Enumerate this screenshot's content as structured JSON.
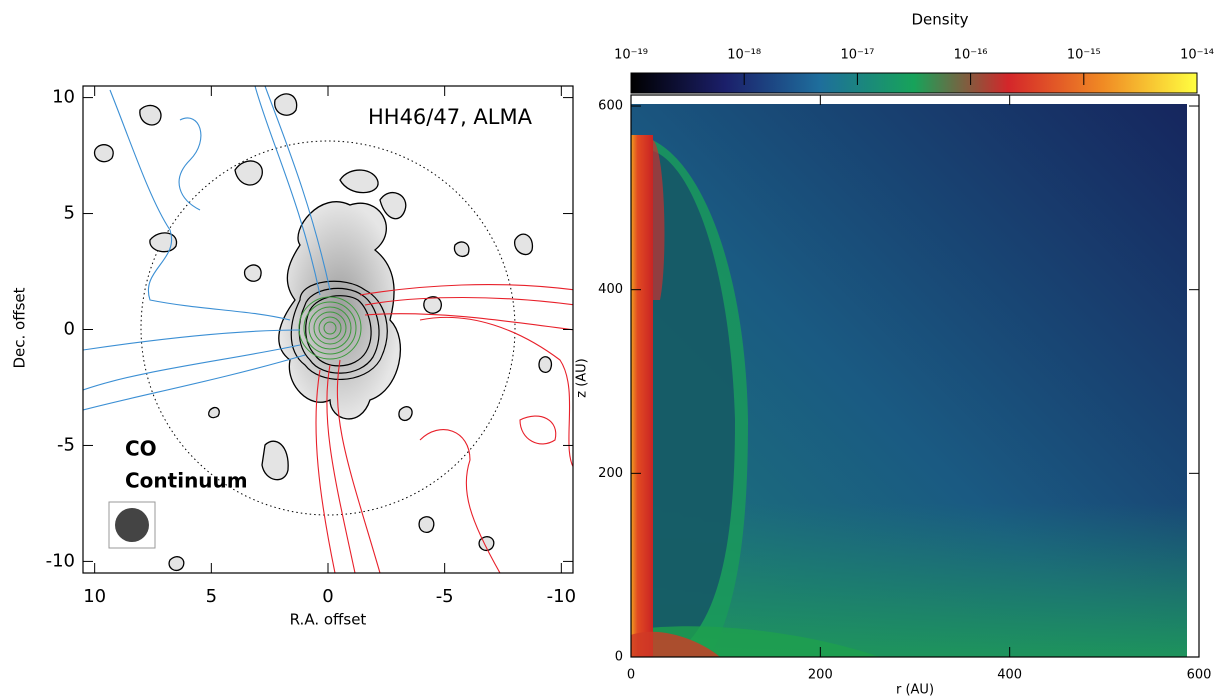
{
  "chart_data": [
    {
      "type": "contour",
      "title": "HH46/47, ALMA",
      "xlabel": "R.A. offset",
      "ylabel": "Dec. offset",
      "xlim": [
        10.5,
        -10.5
      ],
      "ylim": [
        -10.5,
        10.5
      ],
      "xticks": [
        10,
        5,
        0,
        -5,
        -10
      ],
      "yticks": [
        -10,
        -5,
        0,
        5,
        10
      ],
      "series": [
        {
          "name": "CO",
          "color": "#e8202a"
        },
        {
          "name": "Continuum",
          "color": "#8c8c8c"
        }
      ]
    },
    {
      "type": "heatmap",
      "colorbar_label": "Density",
      "colorbar_scale": "log",
      "colorbar_lim": [
        1e-19,
        1e-14
      ],
      "colorbar_ticks": [
        {
          "value": 1e-19,
          "label": "10⁻¹⁹"
        },
        {
          "value": 1e-18,
          "label": "10⁻¹⁸"
        },
        {
          "value": 1e-17,
          "label": "10⁻¹⁷"
        },
        {
          "value": 1e-16,
          "label": "10⁻¹⁶"
        },
        {
          "value": 1e-15,
          "label": "10⁻¹⁵"
        },
        {
          "value": 1e-14,
          "label": "10⁻¹⁴"
        }
      ],
      "colormap": [
        "#000000",
        "#1b1f6a",
        "#1e6e9c",
        "#17a35a",
        "#d4262a",
        "#f08a24",
        "#ffff40"
      ],
      "xlabel": "r (AU)",
      "ylabel": "z (AU)",
      "xlim": [
        0,
        600
      ],
      "ylim": [
        0,
        612
      ],
      "xticks": [
        0,
        200,
        400,
        600
      ],
      "yticks": [
        0,
        200,
        400,
        600
      ]
    }
  ]
}
